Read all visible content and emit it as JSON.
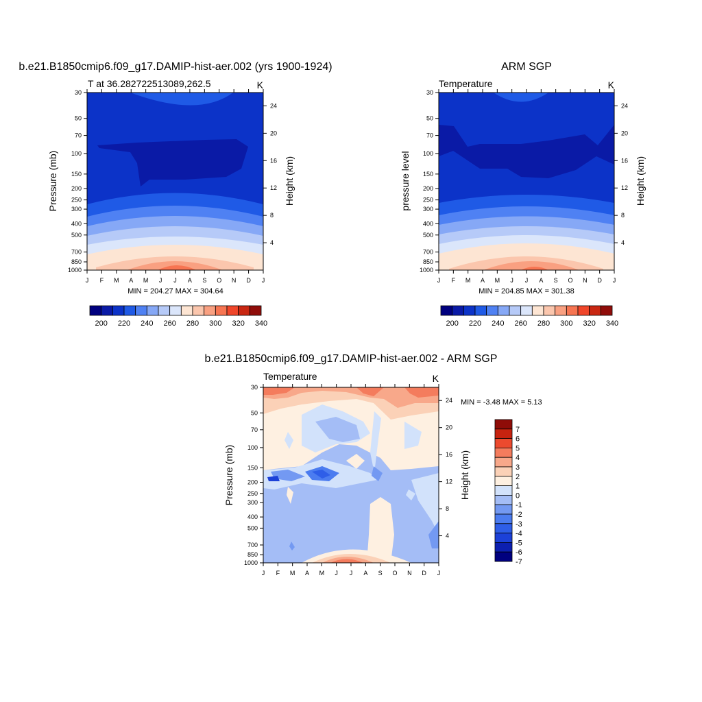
{
  "figure": {
    "months": [
      "J",
      "F",
      "M",
      "A",
      "M",
      "J",
      "J",
      "A",
      "S",
      "O",
      "N",
      "D",
      "J"
    ],
    "pressure_ticks": [
      30,
      50,
      70,
      100,
      150,
      200,
      250,
      300,
      400,
      500,
      700,
      850,
      1000
    ],
    "temp_colorbar_labels": [
      200,
      220,
      240,
      260,
      280,
      300,
      320,
      340
    ],
    "diff_colorbar_labels": [
      7,
      6,
      5,
      4,
      3,
      2,
      1,
      0,
      -1,
      -2,
      -3,
      -4,
      -5,
      -6,
      -7
    ]
  },
  "chart_data": [
    {
      "type": "heatmap",
      "title": "b.e21.B1850cmip6.f09_g17.DAMIP-hist-aer.002 (yrs 1900-1924)",
      "subtitle_left": "T at 36.282722513089,262.5",
      "subtitle_right": "K",
      "ylabel": "Pressure (mb)",
      "ylabel_right": "Height (km)",
      "height_ticks": [
        4,
        8,
        12,
        16,
        20,
        24
      ],
      "min": 204.27,
      "max": 304.64,
      "stats_label": "MIN = 204.27  MAX = 304.64",
      "colors": [
        "#00007f",
        "#0a1aa6",
        "#0c33c8",
        "#1f5ae6",
        "#4f81f3",
        "#86a8f6",
        "#b6caf8",
        "#dbe6fb",
        "#fde5d3",
        "#fbc6ad",
        "#f9a081",
        "#f77552",
        "#f0462a",
        "#c92712",
        "#900d0a"
      ]
    },
    {
      "type": "heatmap",
      "title": "ARM SGP",
      "subtitle_left": "Temperature",
      "subtitle_right": "K",
      "ylabel": "pressure level",
      "ylabel_right": "Height (km)",
      "height_ticks": [
        4,
        8,
        12,
        16,
        20,
        24
      ],
      "min": 204.85,
      "max": 301.38,
      "stats_label": "MIN = 204.85  MAX = 301.38"
    },
    {
      "type": "heatmap",
      "title": "b.e21.B1850cmip6.f09_g17.DAMIP-hist-aer.002 - ARM SGP",
      "subtitle_left": "Temperature",
      "subtitle_right": "K",
      "ylabel": "Pressure (mb)",
      "ylabel_right": "Height (km)",
      "height_ticks": [
        4,
        8,
        12,
        16,
        20,
        24
      ],
      "min": -3.48,
      "max": 5.13,
      "stats_label": "MIN =  -3.48 MAX =   5.13",
      "colors": [
        "#00007f",
        "#0c1fb0",
        "#1c41d8",
        "#2e5ee8",
        "#4b7cf0",
        "#7399f2",
        "#a4bdf6",
        "#d2e2fb",
        "#fef0e1",
        "#fbd1b7",
        "#f8a88a",
        "#f47c5d",
        "#ec4a2e",
        "#c7230f",
        "#8f0c08"
      ]
    }
  ]
}
